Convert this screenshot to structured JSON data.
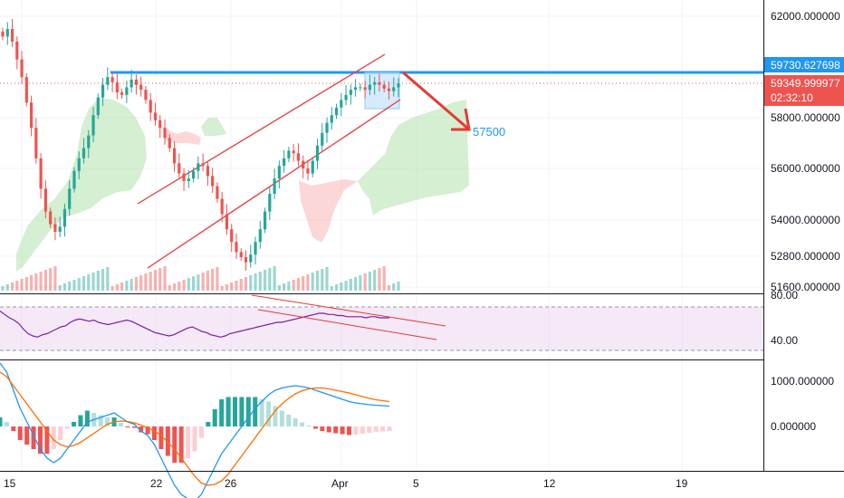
{
  "chart_data": {
    "type": "candlestick",
    "date_ticks": [
      "15",
      "22",
      "26",
      "Apr",
      "5",
      "12",
      "19"
    ],
    "price_panel": {
      "y_ticks": [
        "62000.000000",
        "58000.000000",
        "56000.000000",
        "54000.000000",
        "52800.000000",
        "51600.000000"
      ],
      "resistance_level": 59730.627698,
      "resistance_label": "59730.627698",
      "last_price_label": "59349.999977",
      "countdown_label": "02:32:10",
      "target_label": "57500",
      "target_value": 57500,
      "close_series": [
        61200,
        61500,
        61000,
        60300,
        59600,
        58600,
        57600,
        56400,
        55200,
        54300,
        53800,
        53500,
        53700,
        54400,
        55200,
        55900,
        56400,
        56800,
        57300,
        58100,
        58800,
        59300,
        59600,
        59400,
        59000,
        58900,
        59200,
        59500,
        59300,
        59100,
        58700,
        58200,
        57900,
        57600,
        57200,
        56800,
        56200,
        55800,
        55500,
        55600,
        55900,
        56200,
        56100,
        55700,
        55300,
        54800,
        54200,
        53600,
        53100,
        52700,
        52500,
        52300,
        52600,
        53100,
        53600,
        54300,
        55000,
        55600,
        56100,
        56400,
        56700,
        56600,
        56300,
        56000,
        55800,
        56300,
        56900,
        57400,
        57800,
        58100,
        58400,
        58700,
        58900,
        59100,
        59200,
        59200,
        59100,
        59300,
        59400,
        59300,
        59150,
        59050,
        59200,
        59350
      ]
    },
    "rsi_panel": {
      "y_ticks": [
        "80.00",
        "40.00"
      ],
      "band": [
        30,
        70
      ],
      "values": [
        66,
        63,
        60,
        58,
        55,
        50,
        46,
        44,
        43,
        45,
        46,
        48,
        50,
        52,
        53,
        56,
        58,
        59,
        58,
        57,
        58,
        56,
        55,
        54,
        55,
        56,
        57,
        58,
        57,
        55,
        53,
        51,
        49,
        47,
        46,
        45,
        44,
        45,
        47,
        49,
        51,
        52,
        50,
        48,
        47,
        45,
        44,
        43,
        44,
        46,
        47,
        48,
        49,
        50,
        51,
        52,
        53,
        54,
        55,
        56,
        56,
        57,
        58,
        59,
        60,
        61,
        62,
        63,
        64,
        64,
        63,
        63,
        62,
        62,
        61,
        61,
        61,
        61,
        60,
        61,
        61,
        60,
        60,
        60
      ]
    },
    "macd_panel": {
      "y_ticks": [
        "1000.000000",
        "0.000000"
      ],
      "macd": [
        1400,
        1200,
        800,
        400,
        100,
        -200,
        -500,
        -700,
        -800,
        -700,
        -500,
        -300,
        -100,
        100,
        150,
        200,
        250,
        300,
        200,
        100,
        50,
        -100,
        -200,
        -400,
        -700,
        -1000,
        -1300,
        -1500,
        -1600,
        -1650,
        -1500,
        -1200,
        -900,
        -600,
        -400,
        -200,
        0,
        200,
        400,
        550,
        700,
        800,
        850,
        880,
        900,
        880,
        850,
        800,
        750,
        700,
        650,
        600,
        550,
        520,
        500,
        480,
        470,
        460,
        450
      ],
      "signal": [
        1200,
        1100,
        900,
        700,
        500,
        300,
        100,
        -100,
        -300,
        -400,
        -450,
        -420,
        -350,
        -250,
        -150,
        -50,
        50,
        100,
        120,
        110,
        80,
        30,
        -30,
        -100,
        -200,
        -350,
        -500,
        -700,
        -900,
        -1100,
        -1250,
        -1300,
        -1280,
        -1200,
        -1050,
        -850,
        -650,
        -450,
        -250,
        -50,
        150,
        350,
        500,
        620,
        720,
        790,
        830,
        850,
        850,
        830,
        800,
        770,
        740,
        700,
        660,
        620,
        590,
        570,
        550
      ],
      "histogram": [
        200,
        100,
        -100,
        -300,
        -400,
        -500,
        -600,
        -600,
        -500,
        -300,
        -50,
        100,
        250,
        350,
        300,
        250,
        200,
        200,
        80,
        -10,
        -30,
        -130,
        -170,
        -300,
        -500,
        -650,
        -800,
        -800,
        -700,
        -550,
        -250,
        100,
        380,
        600,
        650,
        650,
        650,
        650,
        650,
        600,
        550,
        450,
        350,
        260,
        180,
        90,
        20,
        -50,
        -100,
        -130,
        -150,
        -170,
        -190,
        -180,
        -160,
        -140,
        -120,
        -110,
        -100
      ]
    }
  }
}
